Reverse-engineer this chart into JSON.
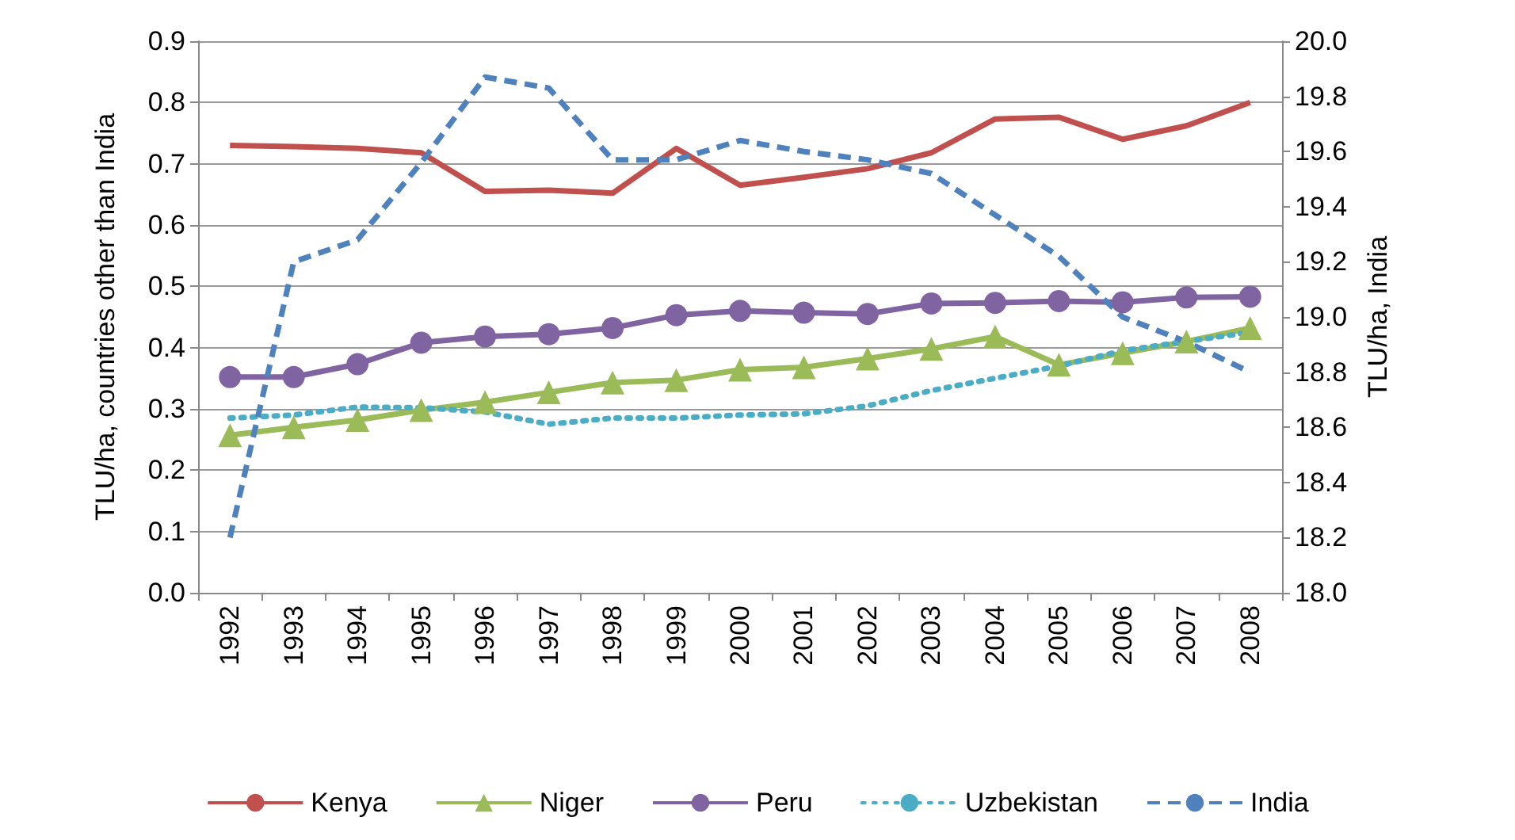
{
  "chart_data": {
    "type": "line",
    "ylabel": "TLU/ha, countries other than India",
    "y2label": "TLU/ha, India",
    "categories": [
      "1992",
      "1993",
      "1994",
      "1995",
      "1996",
      "1997",
      "1998",
      "1999",
      "2000",
      "2001",
      "2002",
      "2003",
      "2004",
      "2005",
      "2006",
      "2007",
      "2008"
    ],
    "series": [
      {
        "name": "Kenya",
        "color": "#c0504d",
        "marker": "none",
        "line_style": "solid",
        "values": [
          0.73,
          0.728,
          0.725,
          0.718,
          0.655,
          0.657,
          0.652,
          0.725,
          0.665,
          0.678,
          0.692,
          0.718,
          0.773,
          0.776,
          0.74,
          0.762,
          0.8
        ]
      },
      {
        "name": "Niger",
        "color": "#9bbb59",
        "marker": "triangle",
        "line_style": "solid",
        "values": [
          0.257,
          0.27,
          0.282,
          0.298,
          0.311,
          0.327,
          0.343,
          0.347,
          0.364,
          0.368,
          0.382,
          0.398,
          0.418,
          0.372,
          0.391,
          0.41,
          0.432
        ]
      },
      {
        "name": "Peru",
        "color": "#8064a2",
        "marker": "circle",
        "line_style": "solid",
        "values": [
          0.352,
          0.352,
          0.373,
          0.408,
          0.418,
          0.422,
          0.432,
          0.453,
          0.46,
          0.457,
          0.455,
          0.472,
          0.473,
          0.476,
          0.474,
          0.482,
          0.483
        ]
      },
      {
        "name": "Uzbekistan",
        "color": "#4bacc6",
        "marker": "none",
        "line_style": "dotted",
        "values": [
          0.285,
          0.29,
          0.303,
          0.302,
          0.295,
          0.275,
          0.285,
          0.285,
          0.29,
          0.292,
          0.305,
          0.33,
          0.35,
          0.37,
          0.395,
          0.41,
          0.425
        ]
      },
      {
        "name": "India",
        "color": "#4f81bd",
        "marker": "none",
        "line_style": "dashed",
        "axis": "y2",
        "values": [
          18.2,
          19.2,
          19.28,
          19.56,
          19.87,
          19.83,
          19.57,
          19.57,
          19.64,
          19.6,
          19.57,
          19.52,
          19.37,
          19.22,
          19.0,
          18.91,
          18.8
        ]
      }
    ],
    "ylim": [
      0,
      0.9
    ],
    "yticks": [
      {
        "value": 0,
        "label": "0.0"
      },
      0.1,
      0.2,
      0.3,
      0.4,
      0.5,
      0.6,
      0.7,
      0.8,
      0.9
    ],
    "y2lim": [
      18,
      20
    ],
    "y2ticks": [
      {
        "value": 18,
        "label": "18.0"
      },
      {
        "value": 18.2,
        "label": "18.2"
      },
      {
        "value": 18.4,
        "label": "18.4"
      },
      {
        "value": 18.6,
        "label": "18.6"
      },
      {
        "value": 18.8,
        "label": "18.8"
      },
      {
        "value": 19,
        "label": "19.0"
      },
      {
        "value": 19.2,
        "label": "19.2"
      },
      {
        "value": 19.4,
        "label": "19.4"
      },
      {
        "value": 19.6,
        "label": "19.6"
      },
      {
        "value": 19.8,
        "label": "19.8"
      },
      {
        "value": 20,
        "label": "20.0"
      }
    ],
    "grid": "y",
    "legend": "bottom"
  }
}
